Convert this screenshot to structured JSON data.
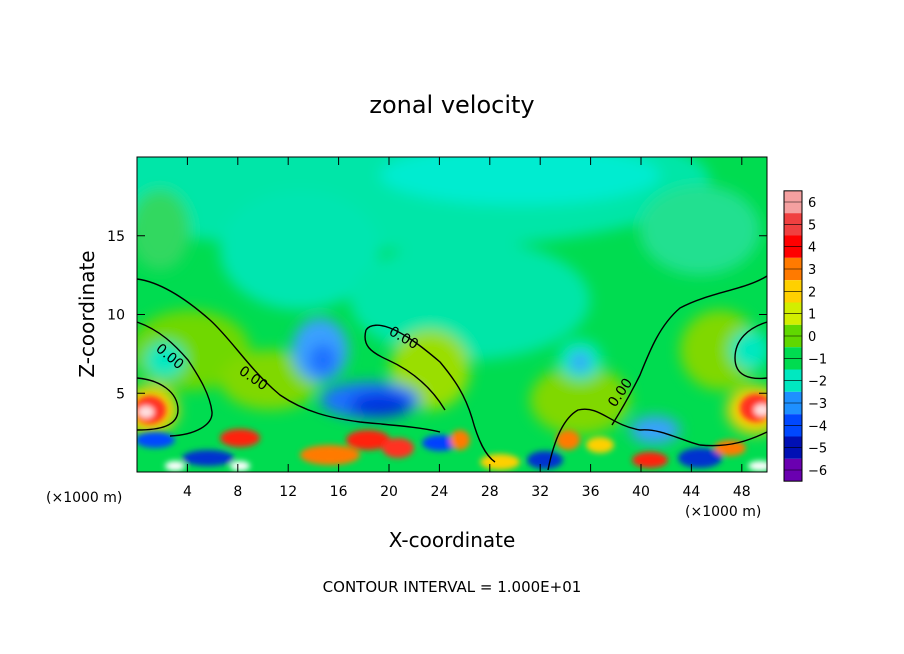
{
  "chart_data": {
    "type": "heatmap",
    "title": "zonal velocity",
    "xlabel": "X-coordinate",
    "ylabel": "Z-coordinate",
    "x_units": "(×1000 m)",
    "y_units": "(×1000 m)",
    "x_ticks": [
      4,
      8,
      12,
      16,
      20,
      24,
      28,
      32,
      36,
      40,
      44,
      48
    ],
    "y_ticks": [
      5,
      10,
      15
    ],
    "xlim": [
      0,
      50
    ],
    "ylim": [
      0,
      20
    ],
    "colorbar": {
      "levels": [
        6,
        5,
        4,
        3,
        2,
        1,
        0,
        -1,
        -2,
        -3,
        -4,
        -5,
        -6
      ],
      "labels": [
        "6",
        "5",
        "4",
        "3",
        "2",
        "1",
        "0",
        "−1",
        "−2",
        "−3",
        "−4",
        "−5",
        "−6"
      ],
      "colors": [
        "#f5a0a0",
        "#f04040",
        "#ff0000",
        "#ff7a00",
        "#ffd000",
        "#d2ee00",
        "#60d800",
        "#00dc50",
        "#00e8c0",
        "#1e90ff",
        "#0048ff",
        "#0010b4",
        "#6a00b0"
      ]
    },
    "contour_level": "0.00",
    "contour_label": "0.00",
    "footer": "CONTOUR INTERVAL = 1.000E+01"
  }
}
